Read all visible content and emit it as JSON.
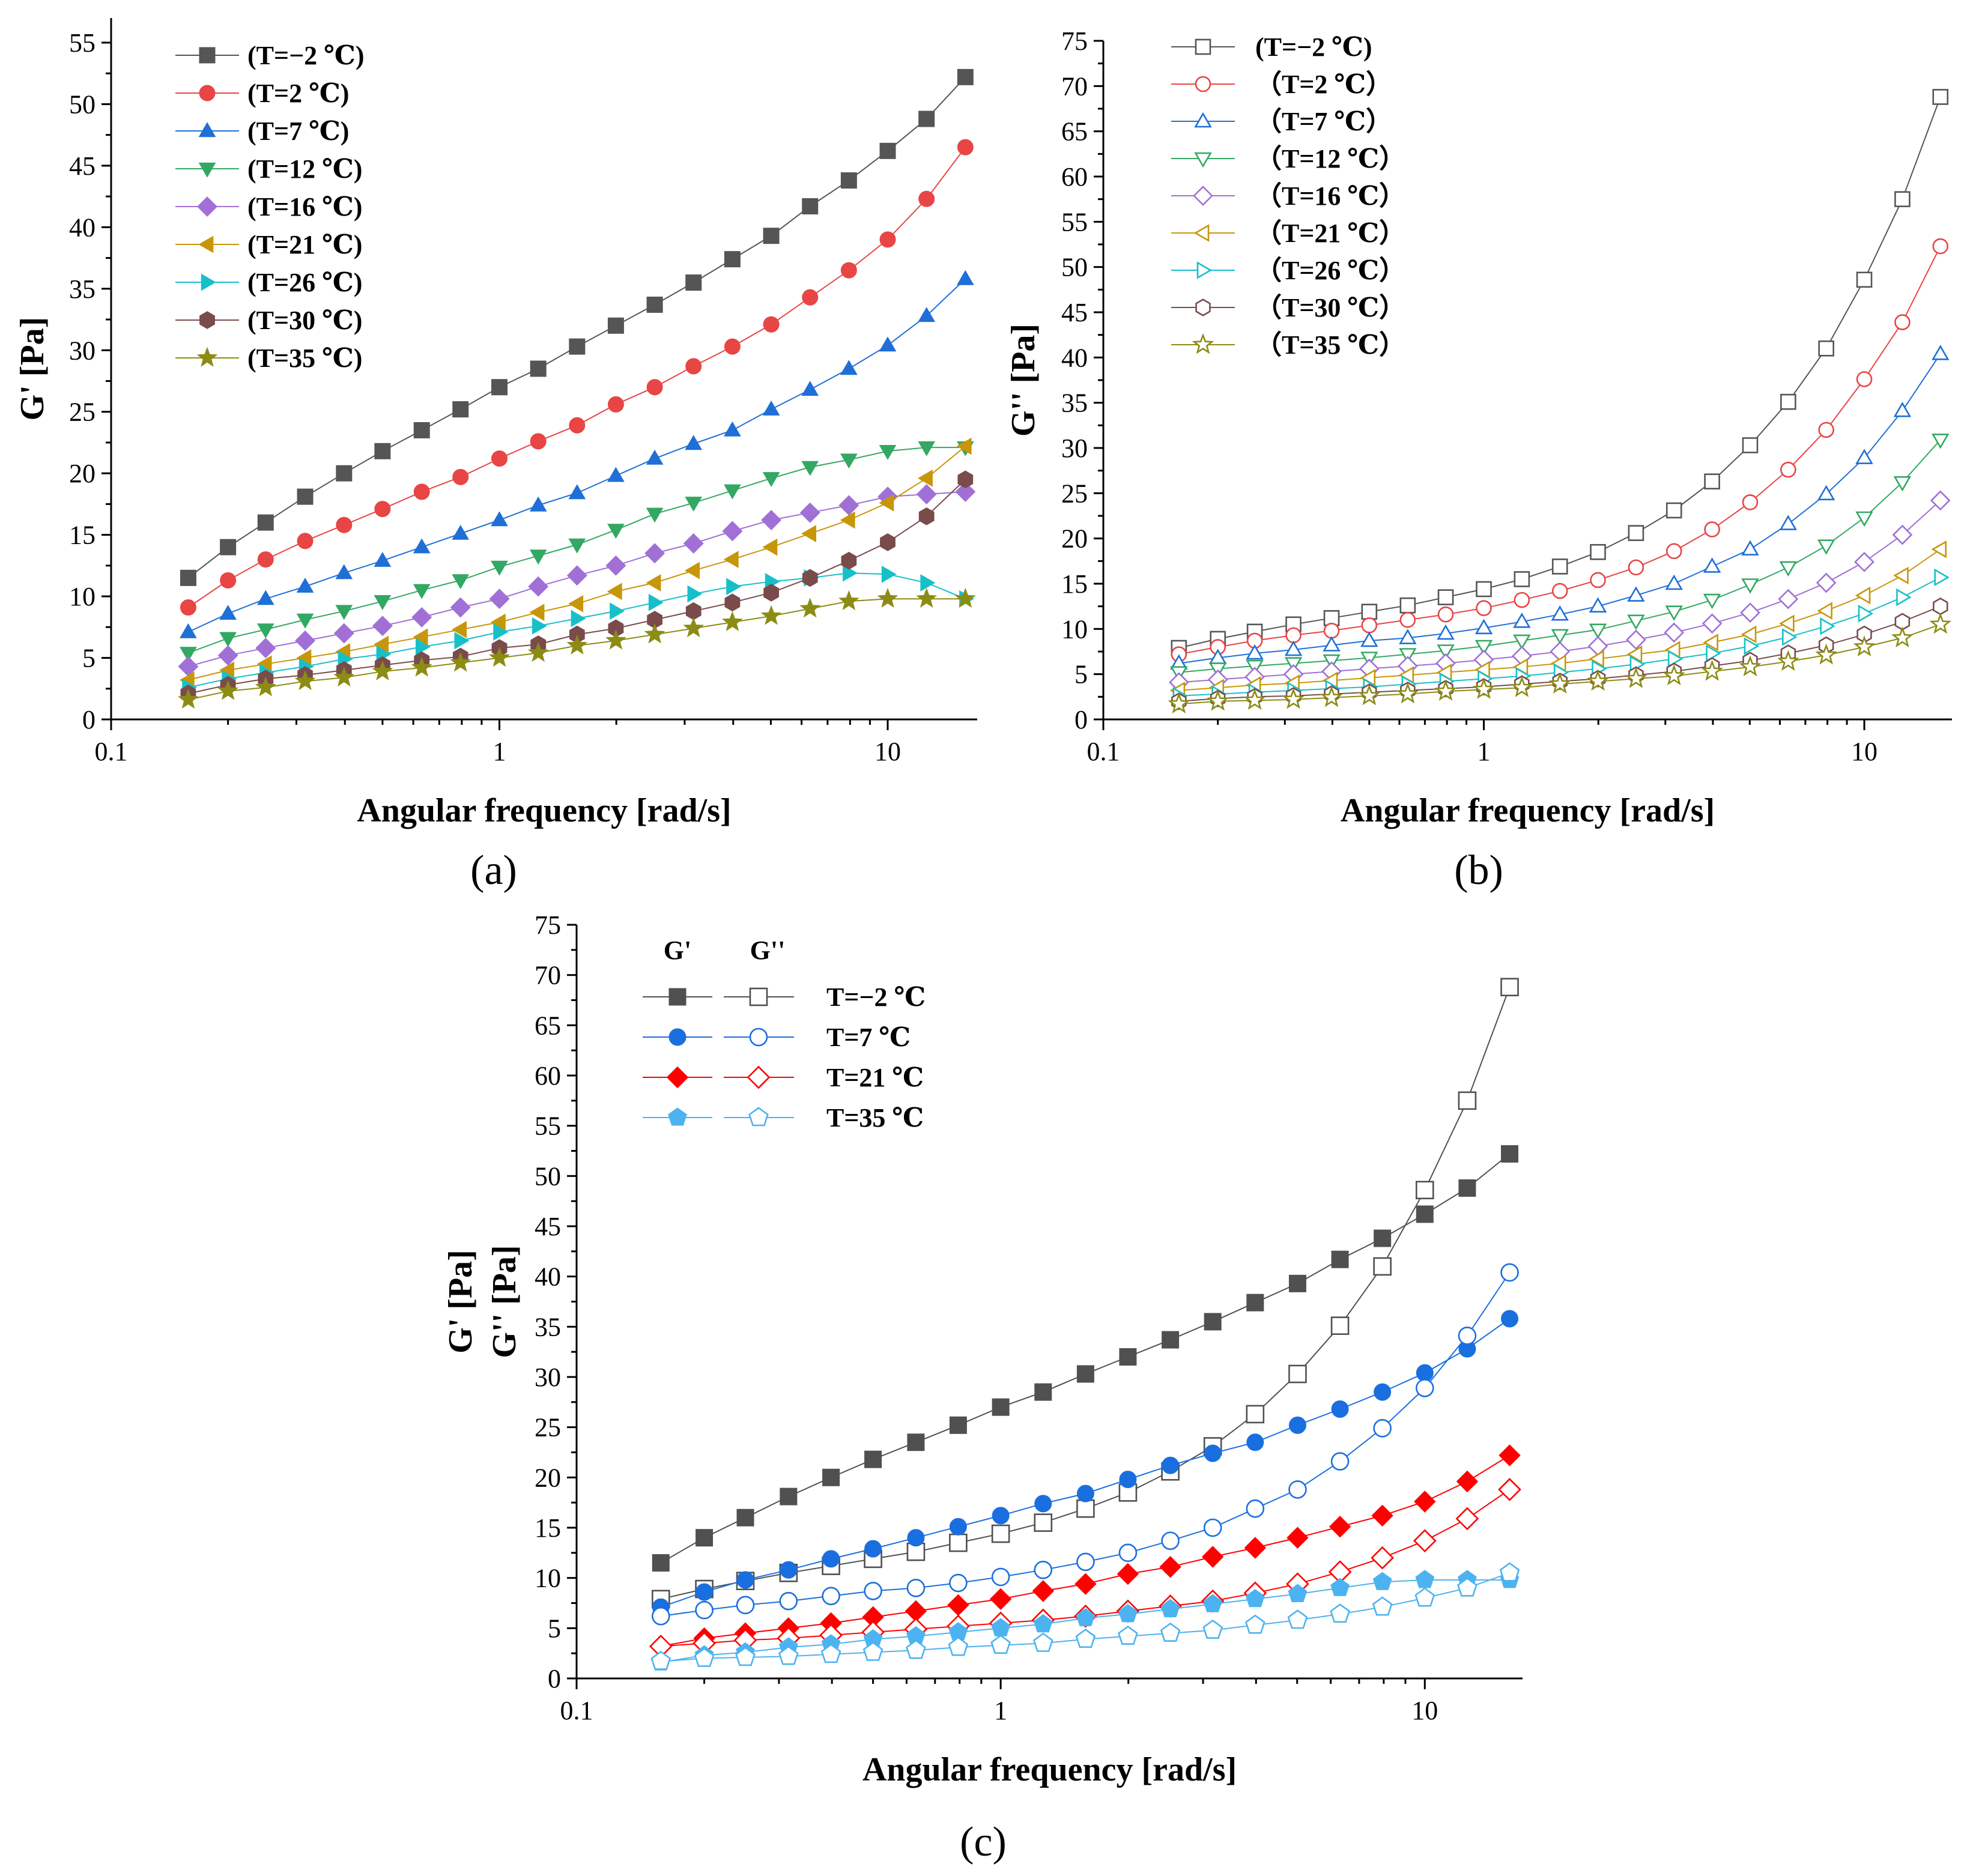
{
  "frequencies": [
    0.158,
    0.2,
    0.25,
    0.316,
    0.398,
    0.5,
    0.631,
    0.794,
    1.0,
    1.259,
    1.585,
    1.995,
    2.512,
    3.162,
    3.981,
    5.012,
    6.31,
    7.943,
    10.0,
    12.59,
    15.85
  ],
  "temperatures": [
    "(T=−2 ℃)",
    "(T=2 ℃)",
    "(T=7 ℃)",
    "(T=12 ℃)",
    "(T=16 ℃)",
    "(T=21 ℃)",
    "(T=26 ℃)",
    "(T=30 ℃)",
    "(T=35 ℃)"
  ],
  "temperatures_b": [
    "(T=−2 ℃)",
    "（T=2 ℃）",
    "（T=7 ℃）",
    "（T=12 ℃）",
    "（T=16 ℃）",
    "（T=21 ℃）",
    "（T=26 ℃）",
    "（T=30 ℃）",
    "（T=35 ℃）"
  ],
  "colors": [
    "#555555",
    "#e84545",
    "#1f6fd6",
    "#33a863",
    "#a070d6",
    "#c8960a",
    "#17c0c9",
    "#7a4b4b",
    "#8c8c14"
  ],
  "markers": [
    "square",
    "circle",
    "triangle-up",
    "triangle-down",
    "diamond",
    "triangle-left",
    "triangle-right",
    "hexagon",
    "star"
  ],
  "chart_data": [
    {
      "id": "a",
      "type": "line",
      "panel_label": "(a)",
      "xlabel": "Angular frequency [rad/s]",
      "ylabel": "G' [Pa]",
      "xscale": "log",
      "xlim": [
        0.1,
        17
      ],
      "ylim": [
        0,
        57
      ],
      "xticks": [
        0.1,
        1,
        10
      ],
      "xtick_labels": [
        "0.1",
        "1",
        "10"
      ],
      "yticks": [
        0,
        5,
        10,
        15,
        20,
        25,
        30,
        35,
        40,
        45,
        50,
        55
      ],
      "ytick_labels": [
        "0",
        "5",
        "10",
        "15",
        "20",
        "25",
        "30",
        "35",
        "40",
        "45",
        "50",
        "55"
      ],
      "filled": true,
      "series": [
        {
          "name": "(T=−2 ℃)",
          "values": [
            11.5,
            14.0,
            16.0,
            18.1,
            20.0,
            21.8,
            23.5,
            25.2,
            27.0,
            28.5,
            30.3,
            32.0,
            33.7,
            35.5,
            37.4,
            39.3,
            41.7,
            43.8,
            46.2,
            48.8,
            52.2
          ]
        },
        {
          "name": "(T=2 ℃)",
          "values": [
            9.1,
            11.3,
            13.0,
            14.5,
            15.8,
            17.1,
            18.5,
            19.7,
            21.2,
            22.6,
            23.9,
            25.6,
            27.0,
            28.7,
            30.3,
            32.1,
            34.3,
            36.5,
            39.0,
            42.3,
            46.5
          ]
        },
        {
          "name": "(T=7 ℃)",
          "values": [
            7.1,
            8.6,
            9.8,
            10.8,
            11.9,
            12.9,
            14.0,
            15.1,
            16.2,
            17.4,
            18.4,
            19.8,
            21.2,
            22.4,
            23.5,
            25.2,
            26.8,
            28.5,
            30.4,
            32.8,
            35.8
          ]
        },
        {
          "name": "(T=12 ℃)",
          "values": [
            5.4,
            6.6,
            7.3,
            8.1,
            8.8,
            9.6,
            10.5,
            11.3,
            12.4,
            13.3,
            14.2,
            15.4,
            16.7,
            17.6,
            18.6,
            19.6,
            20.5,
            21.1,
            21.8,
            22.1,
            22.1
          ]
        },
        {
          "name": "(T=16 ℃)",
          "values": [
            4.3,
            5.2,
            5.8,
            6.4,
            7.0,
            7.6,
            8.3,
            9.1,
            9.8,
            10.8,
            11.7,
            12.5,
            13.5,
            14.3,
            15.3,
            16.2,
            16.8,
            17.4,
            18.1,
            18.3,
            18.5
          ]
        },
        {
          "name": "(T=21 ℃)",
          "values": [
            3.2,
            4.0,
            4.5,
            5.0,
            5.5,
            6.1,
            6.7,
            7.3,
            7.9,
            8.7,
            9.4,
            10.4,
            11.1,
            12.1,
            13.0,
            14.0,
            15.1,
            16.2,
            17.6,
            19.6,
            22.2
          ]
        },
        {
          "name": "(T=26 ℃)",
          "values": [
            2.6,
            3.3,
            3.8,
            4.3,
            4.9,
            5.3,
            5.9,
            6.4,
            7.1,
            7.6,
            8.2,
            8.8,
            9.5,
            10.2,
            10.8,
            11.2,
            11.5,
            11.9,
            11.8,
            11.1,
            9.8
          ]
        },
        {
          "name": "(T=30 ℃)",
          "values": [
            2.1,
            2.8,
            3.3,
            3.6,
            4.0,
            4.4,
            4.8,
            5.1,
            5.8,
            6.1,
            6.9,
            7.4,
            8.1,
            8.8,
            9.5,
            10.3,
            11.5,
            12.9,
            14.4,
            16.5,
            19.5
          ]
        },
        {
          "name": "(T=35 ℃)",
          "values": [
            1.6,
            2.3,
            2.6,
            3.1,
            3.4,
            3.9,
            4.2,
            4.6,
            5.0,
            5.4,
            6.0,
            6.4,
            6.9,
            7.4,
            7.9,
            8.4,
            9.0,
            9.6,
            9.8,
            9.8,
            9.8
          ]
        }
      ]
    },
    {
      "id": "b",
      "type": "line",
      "panel_label": "(b)",
      "xlabel": "Angular frequency [rad/s]",
      "ylabel": "G'' [Pa]",
      "xscale": "log",
      "xlim": [
        0.1,
        17
      ],
      "ylim": [
        0,
        75
      ],
      "xticks": [
        0.1,
        1,
        10
      ],
      "xtick_labels": [
        "0.1",
        "1",
        "10"
      ],
      "yticks": [
        0,
        5,
        10,
        15,
        20,
        25,
        30,
        35,
        40,
        45,
        50,
        55,
        60,
        65,
        70,
        75
      ],
      "ytick_labels": [
        "0",
        "5",
        "10",
        "15",
        "20",
        "25",
        "30",
        "35",
        "40",
        "45",
        "50",
        "55",
        "60",
        "65",
        "70",
        "75"
      ],
      "filled": false,
      "series": [
        {
          "name": "(T=−2 ℃)",
          "values": [
            7.9,
            8.9,
            9.7,
            10.5,
            11.2,
            11.9,
            12.6,
            13.5,
            14.4,
            15.5,
            16.9,
            18.5,
            20.6,
            23.1,
            26.3,
            30.3,
            35.1,
            41.0,
            48.6,
            57.5,
            68.8
          ]
        },
        {
          "name": "（T=2 ℃）",
          "values": [
            7.2,
            8.0,
            8.7,
            9.3,
            9.8,
            10.4,
            11.0,
            11.6,
            12.3,
            13.2,
            14.2,
            15.4,
            16.8,
            18.6,
            21.0,
            24.0,
            27.6,
            32.0,
            37.6,
            43.9,
            52.3
          ]
        },
        {
          "name": "（T=7 ℃）",
          "values": [
            6.2,
            6.8,
            7.3,
            7.7,
            8.2,
            8.7,
            9.0,
            9.5,
            10.1,
            10.8,
            11.6,
            12.5,
            13.7,
            15.0,
            16.9,
            18.8,
            21.6,
            24.9,
            28.9,
            34.1,
            40.4
          ]
        },
        {
          "name": "（T=12 ℃）",
          "values": [
            5.2,
            5.6,
            5.9,
            6.2,
            6.5,
            6.8,
            7.2,
            7.6,
            8.1,
            8.7,
            9.3,
            9.9,
            10.9,
            11.9,
            13.2,
            14.9,
            16.8,
            19.2,
            22.3,
            26.2,
            30.9
          ]
        },
        {
          "name": "（T=16 ℃）",
          "values": [
            4.1,
            4.4,
            4.7,
            5.0,
            5.3,
            5.6,
            5.9,
            6.2,
            6.6,
            7.0,
            7.5,
            8.1,
            8.8,
            9.6,
            10.6,
            11.8,
            13.3,
            15.1,
            17.4,
            20.4,
            24.2
          ]
        },
        {
          "name": "（T=21 ℃）",
          "values": [
            3.2,
            3.5,
            3.8,
            4.0,
            4.3,
            4.6,
            4.9,
            5.2,
            5.5,
            5.8,
            6.2,
            6.7,
            7.2,
            7.7,
            8.5,
            9.4,
            10.6,
            12.0,
            13.7,
            15.9,
            18.8
          ]
        },
        {
          "name": "（T=26 ℃）",
          "values": [
            2.6,
            2.8,
            3.0,
            3.2,
            3.4,
            3.6,
            3.9,
            4.2,
            4.5,
            4.8,
            5.2,
            5.6,
            6.1,
            6.7,
            7.3,
            8.1,
            9.1,
            10.3,
            11.7,
            13.5,
            15.7
          ]
        },
        {
          "name": "（T=30 ℃）",
          "values": [
            2.0,
            2.3,
            2.5,
            2.6,
            2.8,
            3.0,
            3.2,
            3.4,
            3.6,
            3.9,
            4.2,
            4.5,
            4.9,
            5.3,
            5.9,
            6.5,
            7.3,
            8.2,
            9.4,
            10.8,
            12.5
          ]
        },
        {
          "name": "（T=35 ℃）",
          "values": [
            1.7,
            2.0,
            2.1,
            2.2,
            2.4,
            2.6,
            2.8,
            3.1,
            3.3,
            3.5,
            3.9,
            4.2,
            4.5,
            4.8,
            5.3,
            5.8,
            6.4,
            7.1,
            8.0,
            9.0,
            10.5
          ]
        }
      ]
    },
    {
      "id": "c",
      "type": "line",
      "panel_label": "(c)",
      "xlabel": "Angular frequency [rad/s]",
      "ylabel_lines": [
        "G' [Pa]",
        "G'' [Pa]"
      ],
      "xscale": "log",
      "xlim": [
        0.1,
        17
      ],
      "ylim": [
        0,
        75
      ],
      "xticks": [
        0.1,
        1,
        10
      ],
      "xtick_labels": [
        "0.1",
        "1",
        "10"
      ],
      "yticks": [
        0,
        5,
        10,
        15,
        20,
        25,
        30,
        35,
        40,
        45,
        50,
        55,
        60,
        65,
        70,
        75
      ],
      "ytick_labels": [
        "0",
        "5",
        "10",
        "15",
        "20",
        "25",
        "30",
        "35",
        "40",
        "45",
        "50",
        "55",
        "60",
        "65",
        "70",
        "75"
      ],
      "legend_headers": [
        "G'",
        "G''"
      ],
      "legend_labels": [
        "T=−2 ℃",
        "T=7 ℃",
        "T=21 ℃",
        "T=35 ℃"
      ],
      "legend_colors": [
        "#505050",
        "#1a6fe0",
        "#ff0000",
        "#4db3f0"
      ],
      "legend_markers": [
        "square",
        "circle",
        "diamond",
        "pentagon"
      ],
      "series": [
        {
          "name": "G' T=−2 ℃",
          "values": [
            11.5,
            14.0,
            16.0,
            18.1,
            20.0,
            21.8,
            23.5,
            25.2,
            27.0,
            28.5,
            30.3,
            32.0,
            33.7,
            35.5,
            37.4,
            39.3,
            41.7,
            43.8,
            46.2,
            48.8,
            52.2
          ]
        },
        {
          "name": "G'' T=−2 ℃",
          "values": [
            7.9,
            8.9,
            9.7,
            10.5,
            11.2,
            11.9,
            12.6,
            13.5,
            14.4,
            15.5,
            16.9,
            18.5,
            20.6,
            23.1,
            26.3,
            30.3,
            35.1,
            41.0,
            48.6,
            57.5,
            68.8
          ]
        },
        {
          "name": "G' T=7 ℃",
          "values": [
            7.1,
            8.6,
            9.8,
            10.8,
            11.9,
            12.9,
            14.0,
            15.1,
            16.2,
            17.4,
            18.4,
            19.8,
            21.2,
            22.4,
            23.5,
            25.2,
            26.8,
            28.5,
            30.4,
            32.8,
            35.8
          ]
        },
        {
          "name": "G'' T=7 ℃",
          "values": [
            6.2,
            6.8,
            7.3,
            7.7,
            8.2,
            8.7,
            9.0,
            9.5,
            10.1,
            10.8,
            11.6,
            12.5,
            13.7,
            15.0,
            16.9,
            18.8,
            21.6,
            24.9,
            28.9,
            34.1,
            40.4
          ]
        },
        {
          "name": "G' T=21 ℃",
          "values": [
            3.2,
            4.0,
            4.5,
            5.0,
            5.5,
            6.1,
            6.7,
            7.3,
            7.9,
            8.7,
            9.4,
            10.4,
            11.1,
            12.1,
            13.0,
            14.0,
            15.1,
            16.2,
            17.6,
            19.6,
            22.2
          ]
        },
        {
          "name": "G'' T=21 ℃",
          "values": [
            3.2,
            3.5,
            3.8,
            4.0,
            4.3,
            4.6,
            4.9,
            5.2,
            5.5,
            5.8,
            6.2,
            6.7,
            7.2,
            7.7,
            8.5,
            9.4,
            10.6,
            12.0,
            13.7,
            15.9,
            18.8
          ]
        },
        {
          "name": "G' T=35 ℃",
          "values": [
            1.6,
            2.3,
            2.6,
            3.1,
            3.4,
            3.9,
            4.2,
            4.6,
            5.0,
            5.4,
            6.0,
            6.4,
            6.9,
            7.4,
            7.9,
            8.4,
            9.0,
            9.6,
            9.8,
            9.8,
            9.8
          ]
        },
        {
          "name": "G'' T=35 ℃",
          "values": [
            1.7,
            2.0,
            2.1,
            2.2,
            2.4,
            2.6,
            2.8,
            3.1,
            3.3,
            3.5,
            3.9,
            4.2,
            4.5,
            4.8,
            5.3,
            5.8,
            6.4,
            7.1,
            8.0,
            9.0,
            10.5
          ]
        }
      ]
    }
  ]
}
